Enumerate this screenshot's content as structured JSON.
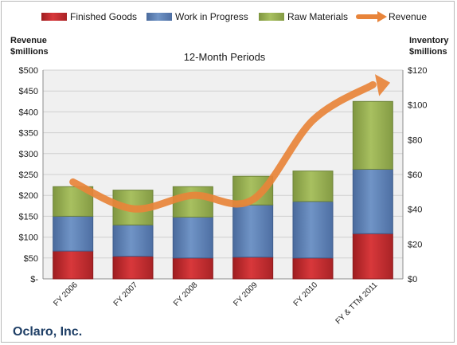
{
  "company": "Oclaro, Inc.",
  "colors": {
    "finished_goods": "#c0282b",
    "work_in_progress": "#5a7db2",
    "raw_materials": "#93ac4d",
    "revenue": "#e8843a",
    "plot_bg": "#f0f0f0",
    "grid": "#cfcfcf"
  },
  "chart_data": {
    "type": "bar",
    "title": "12-Month Periods",
    "stacked": true,
    "categories": [
      "FY 2006",
      "FY 2007",
      "FY 2008",
      "FY 2009",
      "FY 2010",
      "FY & TTM 2011"
    ],
    "series": [
      {
        "name": "Finished Goods",
        "axis": "right",
        "type": "bar",
        "values": [
          16,
          13,
          12,
          12.5,
          12,
          26
        ]
      },
      {
        "name": "Work in Progress",
        "axis": "right",
        "type": "bar",
        "values": [
          20,
          18,
          23.5,
          30,
          32.5,
          37
        ]
      },
      {
        "name": "Raw Materials",
        "axis": "right",
        "type": "bar",
        "values": [
          17,
          20,
          17.5,
          16.5,
          17.5,
          39
        ]
      },
      {
        "name": "Revenue",
        "axis": "left",
        "type": "line",
        "values": [
          232,
          168,
          200,
          190,
          380,
          465
        ]
      }
    ],
    "left_axis": {
      "title_line1": "Revenue",
      "title_line2": "$millions",
      "ylim": [
        0,
        500
      ],
      "ticks": [
        0,
        50,
        100,
        150,
        200,
        250,
        300,
        350,
        400,
        450,
        500
      ],
      "tick_labels": [
        "$-",
        "$50",
        "$100",
        "$150",
        "$200",
        "$250",
        "$300",
        "$350",
        "$400",
        "$450",
        "$500"
      ]
    },
    "right_axis": {
      "title_line1": "Inventory",
      "title_line2": "$millions",
      "ylim": [
        0,
        120
      ],
      "ticks": [
        0,
        20,
        40,
        60,
        80,
        100,
        120
      ],
      "tick_labels": [
        "$0",
        "$20",
        "$40",
        "$60",
        "$80",
        "$100",
        "$120"
      ]
    },
    "legend_position": "top",
    "grid": true
  }
}
